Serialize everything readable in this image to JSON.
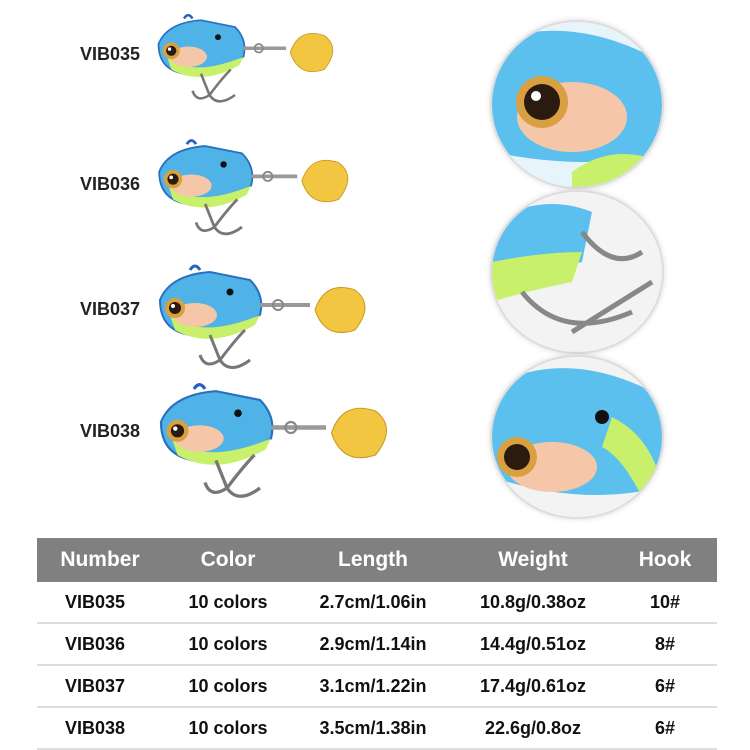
{
  "lures": [
    {
      "model": "VIB035"
    },
    {
      "model": "VIB036"
    },
    {
      "model": "VIB037"
    },
    {
      "model": "VIB038"
    }
  ],
  "colors": {
    "body": "#4fb3e8",
    "belly": "#c8f06a",
    "blade": "#f2c640",
    "header_bg": "#808080"
  },
  "table": {
    "headers": [
      "Number",
      "Color",
      "Length",
      "Weight",
      "Hook"
    ],
    "rows": [
      [
        "VIB035",
        "10 colors",
        "2.7cm/1.06in",
        "10.8g/0.38oz",
        "10#"
      ],
      [
        "VIB036",
        "10 colors",
        "2.9cm/1.14in",
        "14.4g/0.51oz",
        "8#"
      ],
      [
        "VIB037",
        "10 colors",
        "3.1cm/1.22in",
        "17.4g/0.61oz",
        "6#"
      ],
      [
        "VIB038",
        "10 colors",
        "3.5cm/1.38in",
        "22.6g/0.8oz",
        "6#"
      ]
    ]
  }
}
